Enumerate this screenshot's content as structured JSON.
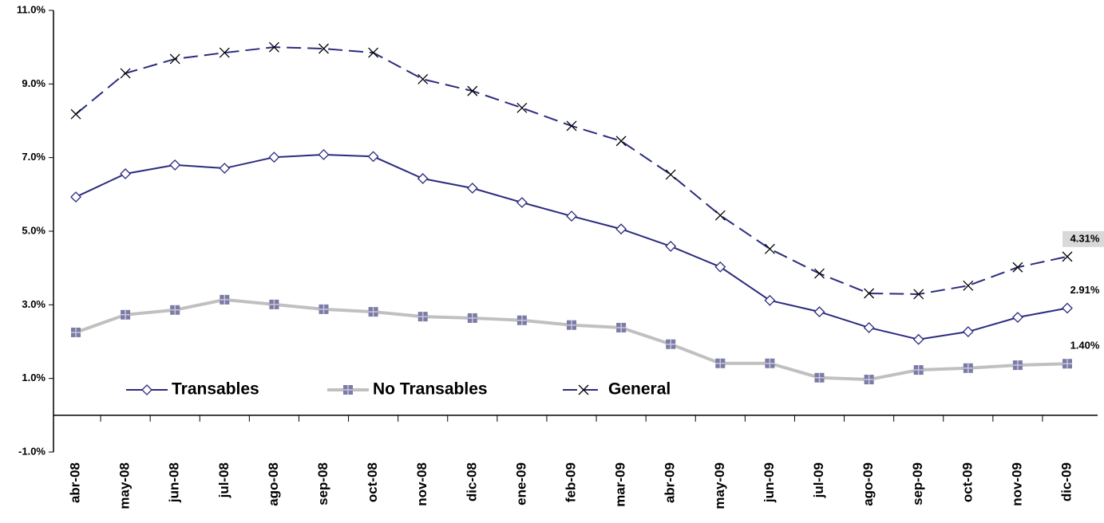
{
  "chart_data": {
    "type": "line",
    "categories": [
      "abr-08",
      "may-08",
      "jun-08",
      "jul-08",
      "ago-08",
      "sep-08",
      "oct-08",
      "nov-08",
      "dic-08",
      "ene-09",
      "feb-09",
      "mar-09",
      "abr-09",
      "may-09",
      "jun-09",
      "jul-09",
      "ago-09",
      "sep-09",
      "oct-09",
      "nov-09",
      "dic-09"
    ],
    "ylim": [
      -1,
      11
    ],
    "yticks": [
      {
        "value": -1,
        "label": "-1.0%"
      },
      {
        "value": 1,
        "label": "1.0%"
      },
      {
        "value": 3,
        "label": "3.0%"
      },
      {
        "value": 5,
        "label": "5.0%"
      },
      {
        "value": 7,
        "label": "7.0%"
      },
      {
        "value": 9,
        "label": "9.0%"
      },
      {
        "value": 11,
        "label": "11.0%"
      }
    ],
    "legend": "lower left",
    "series": [
      {
        "name": "Transables",
        "color": "#2b2b7f",
        "marker": "diamond",
        "dash": false,
        "values": [
          5.93,
          6.56,
          6.8,
          6.71,
          7.01,
          7.08,
          7.03,
          6.43,
          6.17,
          5.78,
          5.41,
          5.06,
          4.59,
          4.03,
          3.12,
          2.81,
          2.38,
          2.06,
          2.27,
          2.66,
          2.91
        ],
        "value_labels": [
          null,
          null,
          null,
          null,
          null,
          null,
          null,
          null,
          null,
          null,
          null,
          null,
          null,
          null,
          null,
          null,
          null,
          null,
          null,
          null,
          "2.91%"
        ]
      },
      {
        "name": "No Transables",
        "color": "#c0c0c0",
        "marker": "square",
        "dash": false,
        "values": [
          2.25,
          2.73,
          2.86,
          3.14,
          3.01,
          2.88,
          2.81,
          2.68,
          2.64,
          2.58,
          2.45,
          2.38,
          1.93,
          1.41,
          1.41,
          1.02,
          0.97,
          1.23,
          1.28,
          1.36,
          1.4
        ],
        "value_labels": [
          null,
          null,
          null,
          null,
          null,
          null,
          null,
          null,
          null,
          null,
          null,
          null,
          null,
          null,
          null,
          null,
          null,
          null,
          null,
          null,
          "1.40%"
        ]
      },
      {
        "name": "General",
        "color": "#2b2b7f",
        "marker": "x",
        "dash": true,
        "values": [
          8.18,
          9.29,
          9.68,
          9.85,
          10.0,
          9.96,
          9.85,
          9.13,
          8.81,
          8.35,
          7.86,
          7.45,
          6.54,
          5.43,
          4.52,
          3.85,
          3.31,
          3.29,
          3.52,
          4.02,
          4.31
        ],
        "value_labels": [
          null,
          null,
          null,
          null,
          null,
          null,
          null,
          null,
          null,
          null,
          null,
          null,
          null,
          null,
          null,
          null,
          null,
          null,
          null,
          null,
          "4.31%"
        ]
      }
    ]
  }
}
